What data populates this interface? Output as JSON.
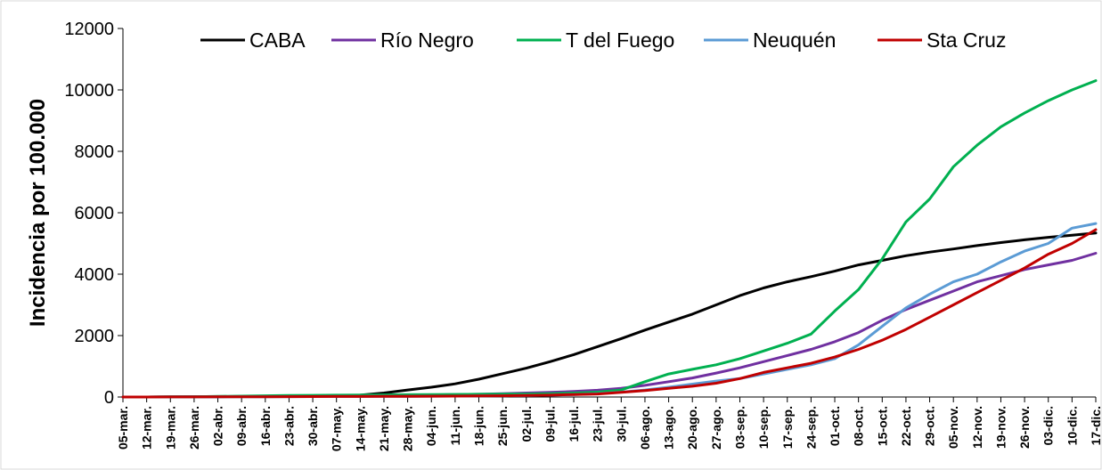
{
  "chart_data": {
    "type": "line",
    "title": "",
    "xlabel": "",
    "ylabel": "Incidencia por 100.000",
    "ylim": [
      0,
      12000
    ],
    "yticks": [
      0,
      2000,
      4000,
      6000,
      8000,
      10000,
      12000
    ],
    "grid": false,
    "legend_position": "top",
    "xtick_labels": [
      "05-mar.",
      "12-mar.",
      "19-mar.",
      "26-mar.",
      "02-abr.",
      "09-abr.",
      "16-abr.",
      "23-abr.",
      "30-abr.",
      "07-may.",
      "14-may.",
      "21-may.",
      "28-may.",
      "04-jun.",
      "11-jun.",
      "18-jun.",
      "25-jun.",
      "02-jul.",
      "09-jul.",
      "16-jul.",
      "23-jul.",
      "30-jul.",
      "06-ago.",
      "13-ago.",
      "20-ago.",
      "27-ago.",
      "03-sep.",
      "10-sep.",
      "17-sep.",
      "24-sep.",
      "01-oct.",
      "08-oct.",
      "15-oct.",
      "22-oct.",
      "29-oct.",
      "05-nov.",
      "12-nov.",
      "19-nov.",
      "26-nov.",
      "03-dic.",
      "10-dic.",
      "17-dic."
    ],
    "x": [
      "05-mar.",
      "12-mar.",
      "19-mar.",
      "26-mar.",
      "02-abr.",
      "09-abr.",
      "16-abr.",
      "23-abr.",
      "30-abr.",
      "07-may.",
      "14-may.",
      "21-may.",
      "28-may.",
      "04-jun.",
      "11-jun.",
      "18-jun.",
      "25-jun.",
      "02-jul.",
      "09-jul.",
      "16-jul.",
      "23-jul.",
      "30-jul.",
      "06-ago.",
      "13-ago.",
      "20-ago.",
      "27-ago.",
      "03-sep.",
      "10-sep.",
      "17-sep.",
      "24-sep.",
      "01-oct.",
      "08-oct.",
      "15-oct.",
      "22-oct.",
      "29-oct.",
      "05-nov.",
      "12-nov.",
      "19-nov.",
      "26-nov.",
      "03-dic.",
      "10-dic.",
      "17-dic."
    ],
    "series": [
      {
        "name": "CABA",
        "color": "#000000",
        "values": [
          0,
          0,
          2,
          5,
          10,
          15,
          20,
          25,
          30,
          40,
          60,
          130,
          230,
          320,
          430,
          580,
          760,
          940,
          1150,
          1380,
          1640,
          1900,
          2180,
          2440,
          2700,
          3000,
          3300,
          3550,
          3750,
          3920,
          4100,
          4300,
          4450,
          4600,
          4720,
          4820,
          4930,
          5030,
          5120,
          5200,
          5270,
          5340
        ]
      },
      {
        "name": "Río Negro",
        "color": "#7030a0",
        "values": [
          0,
          0,
          2,
          5,
          10,
          20,
          30,
          35,
          40,
          45,
          50,
          55,
          60,
          70,
          80,
          90,
          110,
          130,
          150,
          180,
          220,
          280,
          380,
          500,
          620,
          780,
          950,
          1150,
          1350,
          1550,
          1800,
          2100,
          2500,
          2850,
          3150,
          3450,
          3750,
          3950,
          4150,
          4300,
          4450,
          4680
        ]
      },
      {
        "name": "T del Fuego",
        "color": "#00b050",
        "values": [
          0,
          0,
          5,
          10,
          20,
          30,
          40,
          50,
          55,
          60,
          65,
          70,
          75,
          80,
          85,
          90,
          95,
          100,
          110,
          130,
          160,
          230,
          500,
          750,
          900,
          1050,
          1250,
          1500,
          1750,
          2050,
          2800,
          3500,
          4500,
          5700,
          6450,
          7500,
          8200,
          8800,
          9250,
          9650,
          10000,
          10300
        ]
      },
      {
        "name": "Neuquén",
        "color": "#5b9bd5",
        "values": [
          0,
          0,
          2,
          4,
          6,
          8,
          10,
          12,
          14,
          16,
          18,
          20,
          22,
          25,
          30,
          35,
          40,
          50,
          60,
          80,
          110,
          160,
          230,
          320,
          420,
          520,
          600,
          750,
          900,
          1050,
          1250,
          1700,
          2300,
          2900,
          3350,
          3750,
          4000,
          4400,
          4750,
          5000,
          5500,
          5650
        ]
      },
      {
        "name": "Sta Cruz",
        "color": "#c00000",
        "values": [
          0,
          0,
          2,
          4,
          6,
          8,
          10,
          12,
          14,
          16,
          18,
          20,
          22,
          25,
          30,
          35,
          40,
          50,
          60,
          80,
          100,
          150,
          210,
          280,
          350,
          450,
          600,
          800,
          950,
          1100,
          1300,
          1550,
          1850,
          2200,
          2600,
          3000,
          3400,
          3800,
          4200,
          4650,
          5000,
          5450
        ]
      }
    ]
  }
}
